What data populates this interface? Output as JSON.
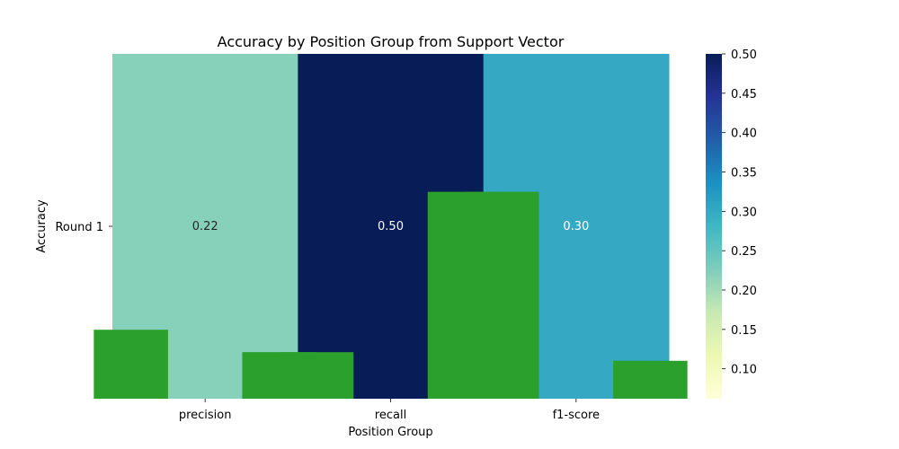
{
  "chart_data": {
    "type": "heatmap",
    "title": "Accuracy by Position Group from Support Vector",
    "xlabel": "Position Group",
    "ylabel": "Accuracy",
    "x_categories": [
      "precision",
      "recall",
      "f1-score"
    ],
    "y_categories": [
      "Round 1"
    ],
    "values": [
      [
        0.22,
        0.5,
        0.3
      ]
    ],
    "annotations": [
      "0.22",
      "0.50",
      "0.30"
    ],
    "colormap": "YlGnBu",
    "colorbar": {
      "range": [
        0.062,
        0.5
      ],
      "ticks": [
        "0.10",
        "0.15",
        "0.20",
        "0.25",
        "0.30",
        "0.35",
        "0.40",
        "0.45",
        "0.50"
      ],
      "tick_values": [
        0.1,
        0.15,
        0.2,
        0.25,
        0.3,
        0.35,
        0.4,
        0.45,
        0.5
      ]
    },
    "overlay_bars": {
      "color": "#2ca02c",
      "axis_range": [
        0,
        1
      ],
      "bars": [
        {
          "category": "precision",
          "offset": -0.4,
          "value": 0.2
        },
        {
          "category": "precision",
          "offset": 0.4,
          "value": 0.135
        },
        {
          "category": "recall",
          "offset": -0.4,
          "value": 0.135
        },
        {
          "category": "recall",
          "offset": 0.4,
          "value": 0.6
        },
        {
          "category": "f1-score",
          "offset": -0.4,
          "value": 0.6
        },
        {
          "category": "f1-score",
          "offset": 0.4,
          "value": 0.11
        }
      ]
    }
  }
}
